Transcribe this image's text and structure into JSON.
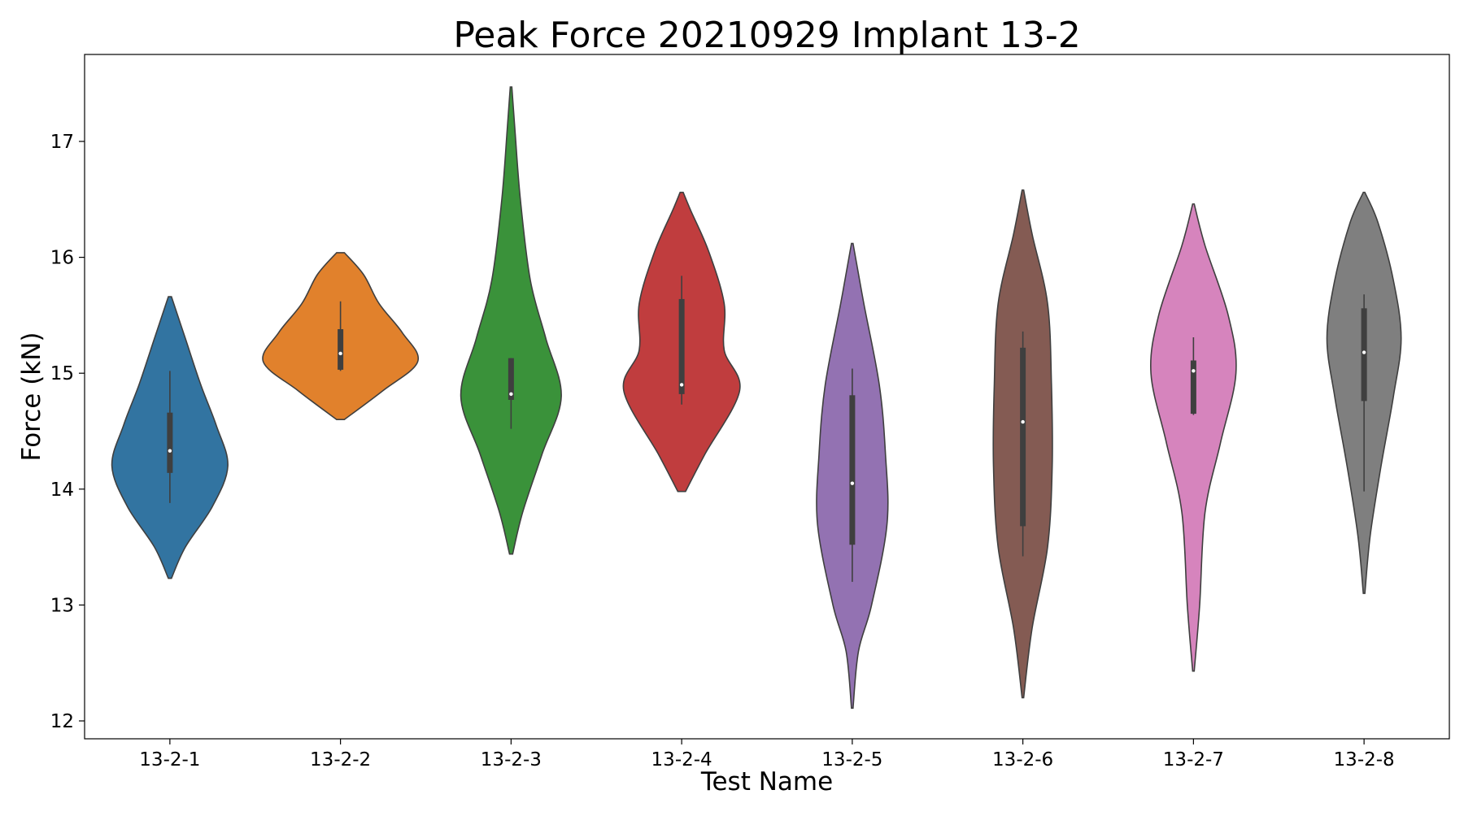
{
  "chart_data": {
    "type": "violin",
    "title": "Peak Force 20210929 Implant 13-2",
    "xlabel": "Test Name",
    "ylabel": "Force (kN)",
    "ylim": [
      11.85,
      17.75
    ],
    "yticks": [
      12,
      13,
      14,
      15,
      16,
      17
    ],
    "ytick_labels": [
      "12",
      "13",
      "14",
      "15",
      "16",
      "17"
    ],
    "grid": false,
    "legend": "none",
    "categories": [
      "13-2-1",
      "13-2-2",
      "13-2-3",
      "13-2-4",
      "13-2-5",
      "13-2-6",
      "13-2-7",
      "13-2-8"
    ],
    "series": [
      {
        "category": "13-2-1",
        "color": "#3274a1",
        "min": 13.23,
        "max": 15.66,
        "whisker_low": 13.88,
        "whisker_high": 15.02,
        "q1": 14.14,
        "median": 14.33,
        "q3": 14.66,
        "density": [
          [
            13.23,
            0.02
          ],
          [
            13.5,
            0.2
          ],
          [
            13.85,
            0.55
          ],
          [
            14.2,
            0.75
          ],
          [
            14.55,
            0.6
          ],
          [
            14.9,
            0.4
          ],
          [
            15.3,
            0.2
          ],
          [
            15.66,
            0.02
          ]
        ]
      },
      {
        "category": "13-2-2",
        "color": "#e1812c",
        "min": 14.6,
        "max": 16.04,
        "whisker_low": 15.02,
        "whisker_high": 15.62,
        "q1": 15.03,
        "median": 15.17,
        "q3": 15.38,
        "density": [
          [
            14.6,
            0.05
          ],
          [
            14.85,
            0.55
          ],
          [
            15.1,
            1.0
          ],
          [
            15.35,
            0.8
          ],
          [
            15.6,
            0.5
          ],
          [
            15.85,
            0.3
          ],
          [
            16.04,
            0.05
          ]
        ]
      },
      {
        "category": "13-2-3",
        "color": "#3a923a",
        "min": 13.44,
        "max": 17.47,
        "whisker_low": 14.52,
        "whisker_high": 15.13,
        "q1": 14.77,
        "median": 14.82,
        "q3": 15.13,
        "density": [
          [
            13.44,
            0.02
          ],
          [
            13.8,
            0.15
          ],
          [
            14.3,
            0.4
          ],
          [
            14.8,
            0.65
          ],
          [
            15.3,
            0.45
          ],
          [
            15.8,
            0.25
          ],
          [
            16.5,
            0.12
          ],
          [
            17.1,
            0.05
          ],
          [
            17.47,
            0.01
          ]
        ]
      },
      {
        "category": "13-2-4",
        "color": "#c03d3e",
        "min": 13.98,
        "max": 16.56,
        "whisker_low": 14.73,
        "whisker_high": 15.84,
        "q1": 14.82,
        "median": 14.9,
        "q3": 15.64,
        "density": [
          [
            13.98,
            0.05
          ],
          [
            14.3,
            0.3
          ],
          [
            14.85,
            0.75
          ],
          [
            15.2,
            0.55
          ],
          [
            15.6,
            0.55
          ],
          [
            16.05,
            0.35
          ],
          [
            16.4,
            0.12
          ],
          [
            16.56,
            0.02
          ]
        ]
      },
      {
        "category": "13-2-5",
        "color": "#9372b2",
        "min": 12.11,
        "max": 16.12,
        "whisker_low": 13.2,
        "whisker_high": 15.04,
        "q1": 13.52,
        "median": 14.05,
        "q3": 14.81,
        "density": [
          [
            12.11,
            0.01
          ],
          [
            12.6,
            0.08
          ],
          [
            13.0,
            0.25
          ],
          [
            13.7,
            0.45
          ],
          [
            14.3,
            0.43
          ],
          [
            14.9,
            0.35
          ],
          [
            15.6,
            0.15
          ],
          [
            16.12,
            0.01
          ]
        ]
      },
      {
        "category": "13-2-6",
        "color": "#845b53",
        "min": 12.2,
        "max": 16.58,
        "whisker_low": 13.42,
        "whisker_high": 15.36,
        "q1": 13.68,
        "median": 14.58,
        "q3": 15.22,
        "density": [
          [
            12.2,
            0.01
          ],
          [
            12.8,
            0.12
          ],
          [
            13.5,
            0.32
          ],
          [
            14.2,
            0.38
          ],
          [
            14.9,
            0.37
          ],
          [
            15.6,
            0.32
          ],
          [
            16.2,
            0.12
          ],
          [
            16.58,
            0.01
          ]
        ]
      },
      {
        "category": "13-2-7",
        "color": "#d684bd",
        "min": 12.43,
        "max": 16.46,
        "whisker_low": 14.64,
        "whisker_high": 15.31,
        "q1": 14.65,
        "median": 15.02,
        "q3": 15.11,
        "density": [
          [
            12.43,
            0.01
          ],
          [
            13.0,
            0.08
          ],
          [
            13.8,
            0.15
          ],
          [
            14.4,
            0.35
          ],
          [
            15.0,
            0.55
          ],
          [
            15.5,
            0.45
          ],
          [
            16.1,
            0.15
          ],
          [
            16.46,
            0.01
          ]
        ]
      },
      {
        "category": "13-2-8",
        "color": "#7f7f7f",
        "min": 13.1,
        "max": 16.56,
        "whisker_low": 13.98,
        "whisker_high": 15.68,
        "q1": 14.76,
        "median": 15.18,
        "q3": 15.56,
        "density": [
          [
            13.1,
            0.01
          ],
          [
            13.6,
            0.08
          ],
          [
            14.2,
            0.22
          ],
          [
            14.8,
            0.38
          ],
          [
            15.3,
            0.48
          ],
          [
            15.8,
            0.38
          ],
          [
            16.3,
            0.18
          ],
          [
            16.56,
            0.01
          ]
        ]
      }
    ]
  }
}
